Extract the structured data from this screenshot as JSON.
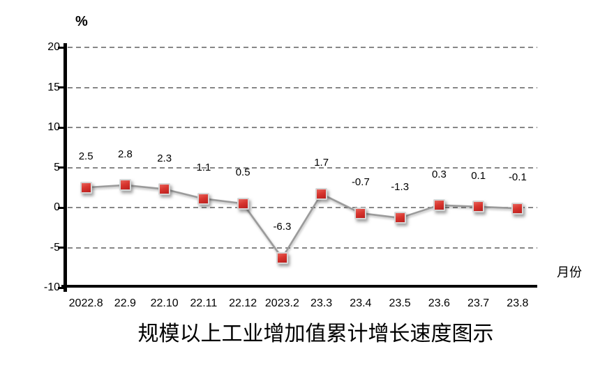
{
  "chart_data": {
    "type": "line",
    "title": "规模以上工业增加值累计增长速度图示",
    "y_unit_label": "%",
    "x_axis_label": "月份",
    "categories": [
      "2022.8",
      "22.9",
      "22.10",
      "22.11",
      "22.12",
      "2023.2",
      "23.3",
      "23.4",
      "23.5",
      "23.6",
      "23.7",
      "23.8"
    ],
    "values": [
      2.5,
      2.8,
      2.3,
      1.1,
      0.5,
      -6.3,
      1.7,
      -0.7,
      -1.3,
      0.3,
      0.1,
      -0.1
    ],
    "point_labels": [
      "2.5",
      "2.8",
      "2.3",
      "1.1",
      "0.5",
      "-6.3",
      "1.7",
      "-0.7",
      "-1.3",
      "0.3",
      "0.1",
      "-0.1"
    ],
    "ylim": [
      -10,
      20
    ],
    "yticks": [
      "20",
      "15",
      "10",
      "5",
      "0",
      "-5",
      "-10"
    ],
    "grid": "horizontal-dashed",
    "legend_position": "none",
    "marker_shape": "square",
    "colors": {
      "line": "#9b9b9b",
      "marker_top": "#e8625a",
      "marker_mid": "#d8362f",
      "marker_bottom": "#bb1f1e",
      "marker_border": "#d6d6d6",
      "grid": "#878787",
      "axis": "#000000",
      "text": "#000000"
    }
  }
}
